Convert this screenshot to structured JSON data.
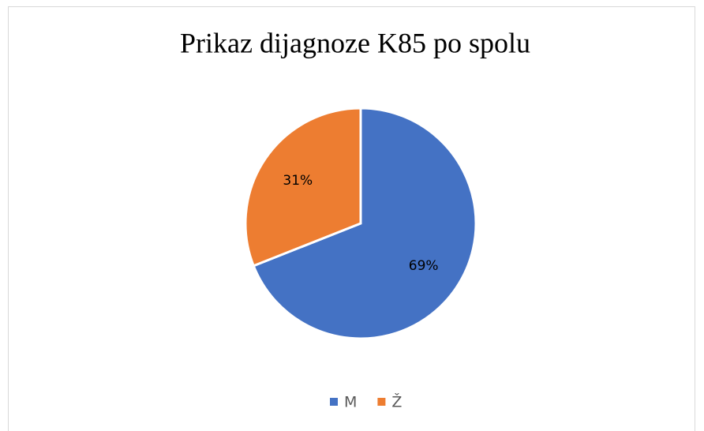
{
  "chart_data": {
    "type": "pie",
    "title": "Prikaz dijagnoze K85 po spolu",
    "categories": [
      "M",
      "Ž"
    ],
    "values": [
      69,
      31
    ],
    "value_labels": [
      "69%",
      "31%"
    ],
    "colors": [
      "#4472c4",
      "#ed7d31"
    ],
    "legend": "bottom"
  }
}
